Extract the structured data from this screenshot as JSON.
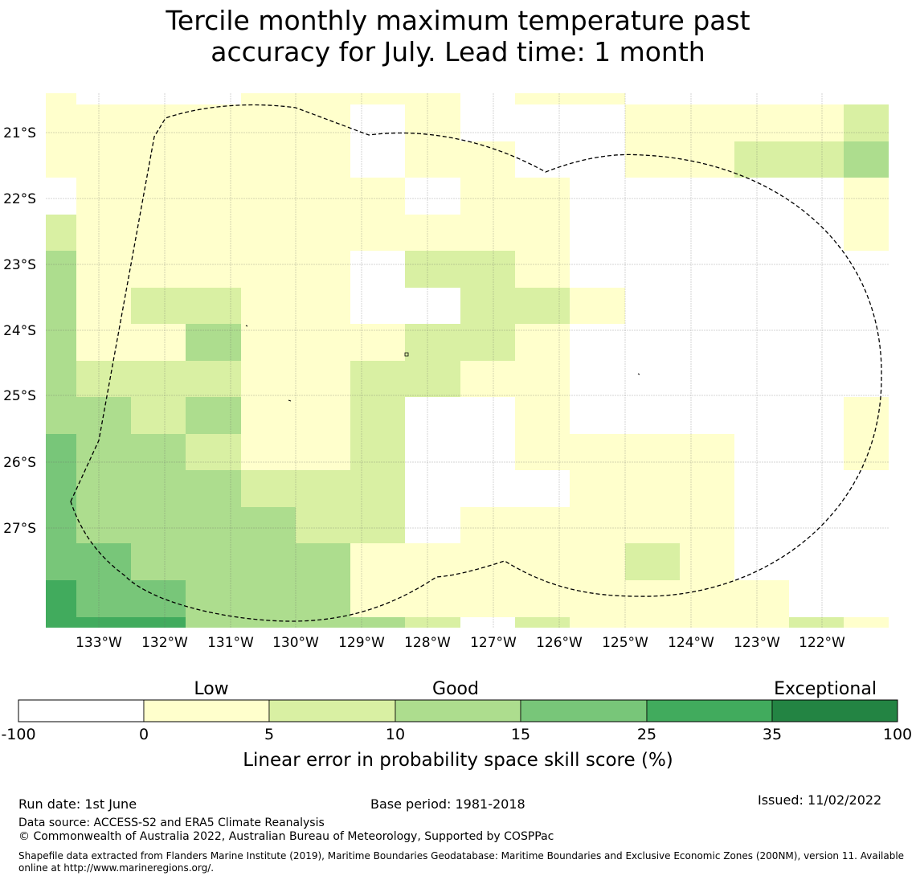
{
  "title": {
    "line1": "Tercile monthly maximum temperature past",
    "line2": "accuracy for July. Lead time: 1 month"
  },
  "map": {
    "lon_labels": [
      "133°W",
      "132°W",
      "131°W",
      "130°W",
      "129°W",
      "128°W",
      "127°W",
      "126°W",
      "125°W",
      "124°W",
      "123°W",
      "122°W"
    ],
    "lat_labels": [
      "21°S",
      "22°S",
      "23°S",
      "24°S",
      "25°S",
      "26°S",
      "27°S"
    ],
    "grid": true,
    "boundary_style": "dashed",
    "colors": {
      "c0": "#ffffff",
      "c1": "#ffffcc",
      "c2": "#d9f0a3",
      "c3": "#addd8e",
      "c4": "#78c679",
      "c5": "#41ab5d",
      "c6": "#238443"
    }
  },
  "colorbar": {
    "categories": [
      "Low",
      "Good",
      "Exceptional"
    ],
    "ticks": [
      "-100",
      "0",
      "5",
      "10",
      "15",
      "25",
      "35",
      "100"
    ],
    "colors": [
      "#ffffff",
      "#ffffcc",
      "#d9f0a3",
      "#addd8e",
      "#78c679",
      "#41ab5d",
      "#238443"
    ],
    "label": "Linear error in probability space skill score (%)"
  },
  "footer": {
    "run_date": "Run date: 1st June",
    "base_period": "Base period: 1981-2018",
    "issued": "Issued: 11/02/2022",
    "data_source": "Data source: ACCESS-S2 and ERA5 Climate Reanalysis",
    "copyright": "© Commonwealth of Australia 2022, Australian Bureau of Meteorology, Supported by COSPPac",
    "shapefile": "Shapefile data extracted from Flanders Marine Institute (2019), Maritime Boundaries Geodatabase: Maritime Boundaries and Exclusive Economic Zones (200NM), version 11. Available online at http://www.marineregions.org/."
  }
}
